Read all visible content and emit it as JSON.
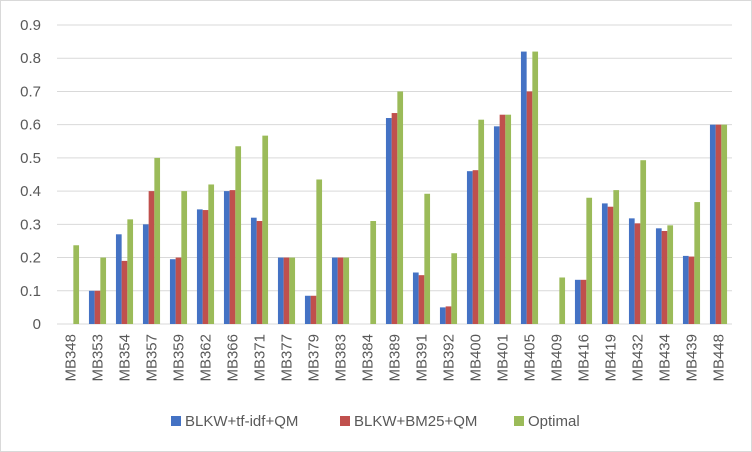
{
  "chart_data": {
    "type": "bar",
    "title": "",
    "xlabel": "",
    "ylabel": "",
    "ylim": [
      0,
      0.9
    ],
    "yticks": [
      "0",
      "0.1",
      "0.2",
      "0.3",
      "0.4",
      "0.5",
      "0.6",
      "0.7",
      "0.8",
      "0.9"
    ],
    "grid": "horizontal",
    "legend_position": "bottom",
    "categories": [
      "MB348",
      "MB353",
      "MB354",
      "MB357",
      "MB359",
      "MB362",
      "MB366",
      "MB371",
      "MB377",
      "MB379",
      "MB383",
      "MB384",
      "MB389",
      "MB391",
      "MB392",
      "MB400",
      "MB401",
      "MB405",
      "MB409",
      "MB416",
      "MB419",
      "MB432",
      "MB434",
      "MB439",
      "MB448"
    ],
    "series": [
      {
        "name": "BLKW+tf-idf+QM",
        "color": "#4472C4",
        "values": [
          0,
          0.1,
          0.27,
          0.3,
          0.195,
          0.345,
          0.4,
          0.32,
          0.2,
          0.085,
          0.2,
          0,
          0.62,
          0.155,
          0.05,
          0.46,
          0.595,
          0.82,
          0,
          0.133,
          0.363,
          0.318,
          0.288,
          0.205,
          0.6
        ]
      },
      {
        "name": "BLKW+BM25+QM",
        "color": "#C0504D",
        "values": [
          0,
          0.1,
          0.19,
          0.4,
          0.2,
          0.343,
          0.403,
          0.31,
          0.2,
          0.085,
          0.2,
          0,
          0.635,
          0.147,
          0.053,
          0.463,
          0.63,
          0.7,
          0,
          0.133,
          0.353,
          0.303,
          0.28,
          0.203,
          0.6
        ]
      },
      {
        "name": "Optimal",
        "color": "#9BBB59",
        "values": [
          0.237,
          0.2,
          0.315,
          0.5,
          0.4,
          0.42,
          0.535,
          0.567,
          0.2,
          0.435,
          0.2,
          0.31,
          0.7,
          0.392,
          0.213,
          0.615,
          0.63,
          0.82,
          0.14,
          0.38,
          0.403,
          0.493,
          0.297,
          0.367,
          0.6
        ]
      }
    ]
  }
}
